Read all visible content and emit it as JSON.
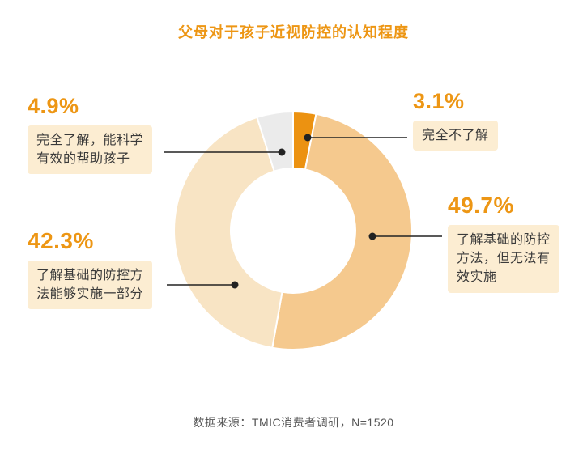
{
  "title": "父母对于孩子近视防控的认知程度",
  "source": "数据来源：TMIC消费者调研，N=1520",
  "accent_color": "#ED9614",
  "chart_data": {
    "type": "pie",
    "subtype": "donut",
    "title": "父母对于孩子近视防控的认知程度",
    "start_angle": "top",
    "direction": "clockwise",
    "inner_radius_ratio": 0.52,
    "legend_position": "callout-labels",
    "segments": [
      {
        "label": "完全不了解",
        "value": 3.1,
        "color": "#EC9211"
      },
      {
        "label": "了解基础的防控方法，但无法有效实施",
        "value": 49.7,
        "color": "#F5C98E"
      },
      {
        "label": "了解基础的防控方法能够实施一部分",
        "value": 42.3,
        "color": "#F8E4C4"
      },
      {
        "label": "完全了解，能科学有效的帮助孩子",
        "value": 4.9,
        "color": "#EBEBEB"
      }
    ],
    "source": "数据来源：TMIC消费者调研，N=1520"
  },
  "labels": {
    "know_fully": {
      "pct": "4.9%",
      "text": "完全了解，能科学\n有效的帮助孩子"
    },
    "know_none": {
      "pct": "3.1%",
      "text": "完全不了解"
    },
    "know_basic_cant": {
      "pct": "49.7%",
      "text": "了解基础的防控\n方法，但无法有\n效实施"
    },
    "know_basic_partial": {
      "pct": "42.3%",
      "text": "了解基础的防控方\n法能够实施一部分"
    }
  }
}
